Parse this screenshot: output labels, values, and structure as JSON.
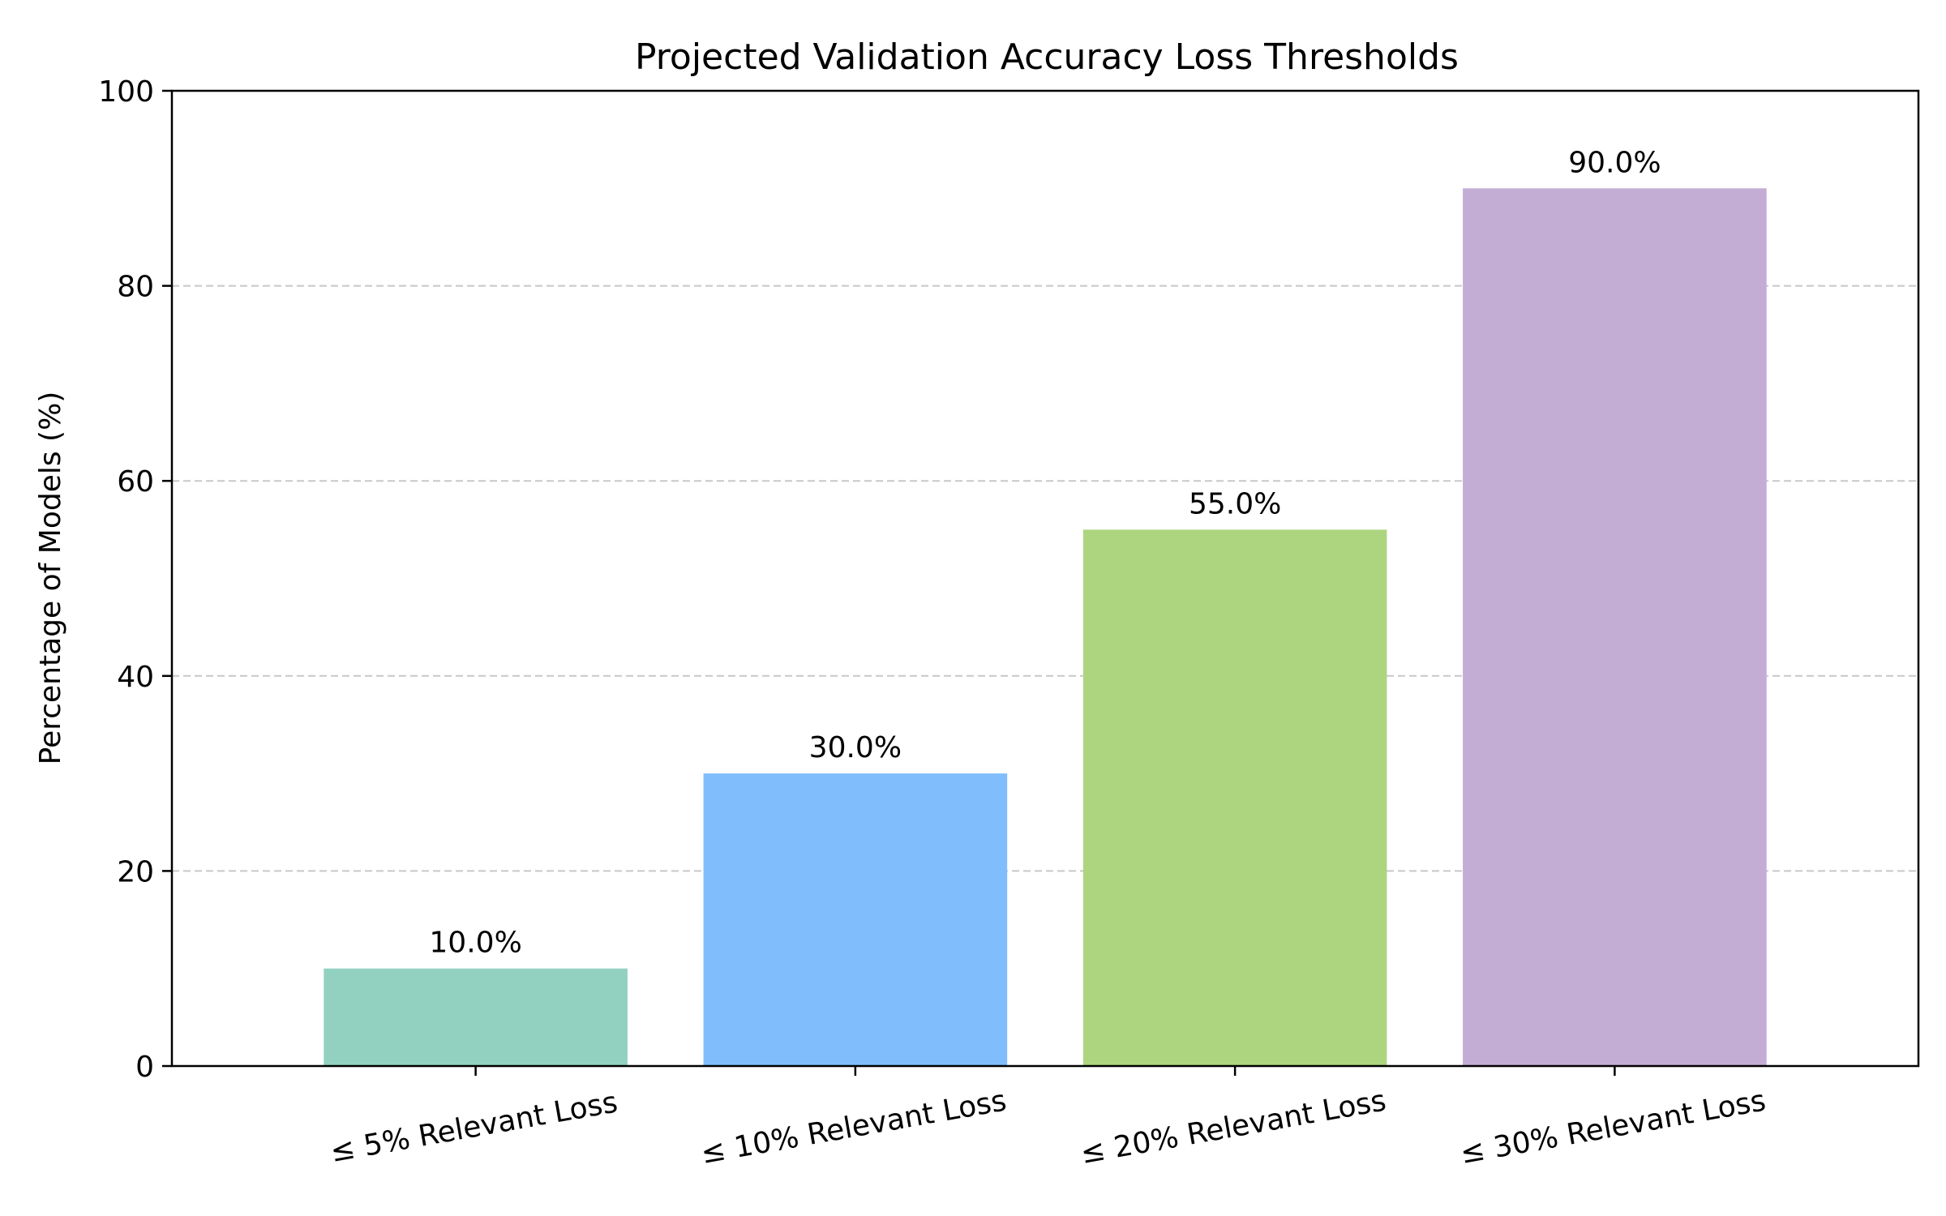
{
  "chart_data": {
    "type": "bar",
    "title": "Projected Validation Accuracy Loss Thresholds",
    "xlabel": "",
    "ylabel": "Percentage of Models (%)",
    "categories": [
      "≤ 5% Relevant Loss",
      "≤ 10% Relevant Loss",
      "≤ 20% Relevant Loss",
      "≤ 30% Relevant Loss"
    ],
    "values": [
      10.0,
      30.0,
      55.0,
      90.0
    ],
    "value_labels": [
      "10.0%",
      "30.0%",
      "55.0%",
      "90.0%"
    ],
    "colors": [
      "#92d1c0",
      "#80bdfd",
      "#add580",
      "#c3add4"
    ],
    "ylim": [
      0,
      100
    ],
    "yticks": [
      0,
      20,
      40,
      60,
      80,
      100
    ],
    "ytick_labels": [
      "0",
      "20",
      "40",
      "60",
      "80",
      "100"
    ],
    "grid": "y-dashed",
    "legend": "none"
  }
}
